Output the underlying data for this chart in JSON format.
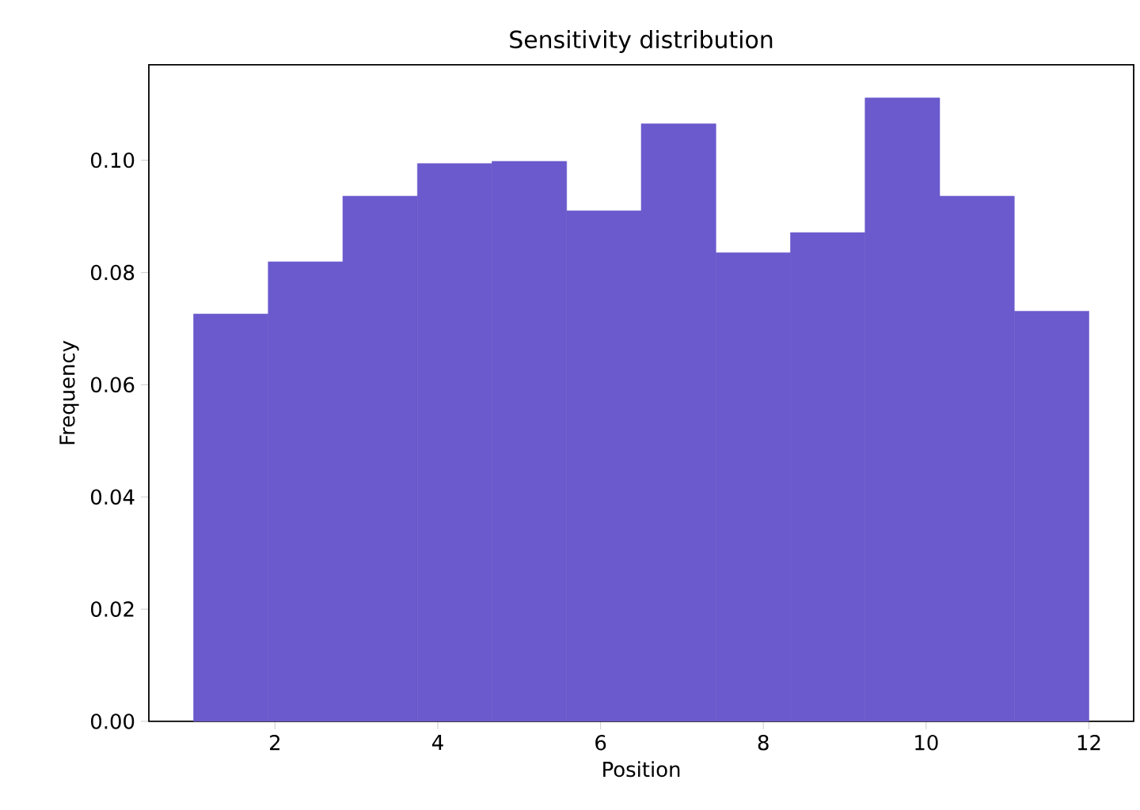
{
  "chart_data": {
    "type": "histogram",
    "title": "Sensitivity distribution",
    "xlabel": "Position",
    "ylabel": "Frequency",
    "bins": [
      1.0,
      1.9167,
      2.8333,
      3.75,
      4.6667,
      5.5833,
      6.5,
      7.4167,
      8.3333,
      9.25,
      10.1667,
      11.0833,
      12.0
    ],
    "values": [
      0.0726,
      0.0819,
      0.0936,
      0.0994,
      0.0998,
      0.091,
      0.1065,
      0.0835,
      0.0871,
      0.1111,
      0.0936,
      0.0731
    ],
    "color": "#6a5acd",
    "xlim": [
      0.45,
      12.55
    ],
    "ylim": [
      0,
      0.117
    ],
    "xticks": [
      2,
      4,
      6,
      8,
      10,
      12
    ],
    "yticks": [
      {
        "value": 0,
        "label": "0.00"
      },
      {
        "value": 0.02,
        "label": "0.02"
      },
      {
        "value": 0.04,
        "label": "0.04"
      },
      {
        "value": 0.06,
        "label": "0.06"
      },
      {
        "value": 0.08,
        "label": "0.08"
      },
      {
        "value": 0.1,
        "label": "0.10"
      }
    ]
  }
}
